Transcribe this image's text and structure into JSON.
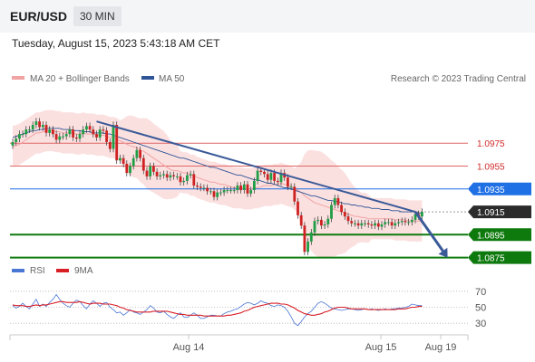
{
  "header": {
    "symbol": "EUR/USD",
    "interval": "30 MIN",
    "datetime": "Tuesday, August 15, 2023 5:43:18 AM CET"
  },
  "legend": {
    "ma20": "MA 20 + Bollinger Bands",
    "ma50": "MA 50",
    "copyright": "Research © 2023 Trading Central",
    "rsi": "RSI",
    "ma9": "9MA"
  },
  "colors": {
    "ma20": "#f2a4a4",
    "ma50": "#2f5597",
    "bollinger": "#fbe0e0",
    "resistance": "#e06666",
    "support": "#0e7a0e",
    "pivot": "#1f6fe5",
    "current": "#2b2b2b",
    "trendline": "#3a5a98",
    "candle_up": "#1f9e45",
    "candle_down": "#cf2222",
    "rsi": "#4a76d4",
    "rsi_ma": "#d81f26"
  },
  "chart_data": [
    {
      "type": "candlestick",
      "y_range": [
        1.0866,
        1.101
      ],
      "x_labels": [
        "Aug 14",
        "Aug 15",
        "Aug 19"
      ],
      "levels": [
        {
          "value": 1.0975,
          "label": "1.0975",
          "kind": "resistance"
        },
        {
          "value": 1.0955,
          "label": "1.0955",
          "kind": "resistance"
        },
        {
          "value": 1.0935,
          "label": "1.0935",
          "kind": "pivot"
        },
        {
          "value": 1.0915,
          "label": "1.0915",
          "kind": "current"
        },
        {
          "value": 1.0895,
          "label": "1.0895",
          "kind": "support"
        },
        {
          "value": 1.0875,
          "label": "1.0875",
          "kind": "support"
        }
      ],
      "closes": [
        1.0976,
        1.0979,
        1.0983,
        1.0983,
        1.0987,
        1.0987,
        1.0991,
        1.0994,
        1.0989,
        1.0991,
        1.0984,
        1.0987,
        1.0983,
        1.0978,
        1.0981,
        1.0981,
        1.0983,
        1.0987,
        1.098,
        1.0979,
        1.0983,
        1.0987,
        1.099,
        1.0987,
        1.0983,
        1.098,
        1.0987,
        1.0986,
        1.0976,
        1.097,
        1.0991,
        1.096,
        1.0962,
        1.0957,
        1.0949,
        1.0955,
        1.0962,
        1.0969,
        1.0962,
        1.0951,
        1.0946,
        1.0955,
        1.095,
        1.0946,
        1.0947,
        1.0948,
        1.0945,
        1.0947,
        1.0946,
        1.0946,
        1.0941,
        1.0942,
        1.0947,
        1.0948,
        1.0938,
        1.0937,
        1.0936,
        1.0936,
        1.0933,
        1.0933,
        1.0928,
        1.0932,
        1.0932,
        1.0934,
        1.0934,
        1.0934,
        1.0934,
        1.0938,
        1.0934,
        1.0939,
        1.0931,
        1.0934,
        1.0942,
        1.0951,
        1.095,
        1.0948,
        1.0943,
        1.0949,
        1.0942,
        1.0941,
        1.0949,
        1.0945,
        1.0937,
        1.0937,
        1.0924,
        1.0912,
        1.0903,
        1.088,
        1.0889,
        1.0897,
        1.0907,
        1.0908,
        1.0903,
        1.0904,
        1.0909,
        1.0921,
        1.0927,
        1.0921,
        1.0915,
        1.0911,
        1.0907,
        1.0905,
        1.0905,
        1.0903,
        1.0905,
        1.0905,
        1.0904,
        1.0903,
        1.0905,
        1.0902,
        1.0904,
        1.0906,
        1.0906,
        1.0903,
        1.0905,
        1.0906,
        1.0907,
        1.0906,
        1.0906,
        1.0908,
        1.0913,
        1.0911,
        1.0915
      ],
      "ma20": [
        1.0972,
        1.0973,
        1.0974,
        1.0976,
        1.0978,
        1.098,
        1.0982,
        1.0984,
        1.0984,
        1.0985,
        1.0986,
        1.0986,
        1.0986,
        1.0985,
        1.0985,
        1.0984,
        1.0984,
        1.0984,
        1.0984,
        1.0983,
        1.0983,
        1.0984,
        1.0983,
        1.0983,
        1.0983,
        1.0982,
        1.0982,
        1.0982,
        1.0981,
        1.098,
        1.098,
        1.0979,
        1.0977,
        1.0976,
        1.0974,
        1.0973,
        1.0972,
        1.0971,
        1.0969,
        1.0968,
        1.0966,
        1.0964,
        1.0962,
        1.096,
        1.0958,
        1.0956,
        1.0954,
        1.0952,
        1.0951,
        1.0951,
        1.095,
        1.0949,
        1.0949,
        1.0947,
        1.0947,
        1.0945,
        1.0944,
        1.0943,
        1.0942,
        1.0941,
        1.0941,
        1.094,
        1.0939,
        1.0939,
        1.0938,
        1.0937,
        1.0936,
        1.0936,
        1.0936,
        1.0935,
        1.0935,
        1.0935,
        1.0936,
        1.0936,
        1.0937,
        1.0938,
        1.0938,
        1.0938,
        1.0939,
        1.0939,
        1.094,
        1.0939,
        1.0938,
        1.0937,
        1.0935,
        1.0934,
        1.0932,
        1.0929,
        1.0927,
        1.0925,
        1.0923,
        1.0922,
        1.0921,
        1.092,
        1.0919,
        1.0918,
        1.0917,
        1.0916,
        1.0915,
        1.0914,
        1.0913,
        1.0912,
        1.0911,
        1.0911,
        1.091,
        1.091,
        1.0909,
        1.0909,
        1.0909,
        1.0909,
        1.0909,
        1.0909,
        1.0909,
        1.0909,
        1.0908,
        1.0908,
        1.0908,
        1.0908,
        1.0907,
        1.0907,
        1.0907,
        1.0907,
        1.0907
      ],
      "ma50": [
        1.098,
        1.0981,
        1.0982,
        1.0983,
        1.0984,
        1.0985,
        1.0986,
        1.0986,
        1.0987,
        1.0987,
        1.0988,
        1.0988,
        1.0988,
        1.0988,
        1.0988,
        1.0987,
        1.0987,
        1.0987,
        1.0986,
        1.0986,
        1.0986,
        1.0985,
        1.0985,
        1.0985,
        1.0984,
        1.0984,
        1.0984,
        1.0984,
        1.0983,
        1.0983,
        1.0982,
        1.0981,
        1.098,
        1.0979,
        1.0978,
        1.0977,
        1.0976,
        1.0975,
        1.0974,
        1.0973,
        1.0972,
        1.0971,
        1.097,
        1.0969,
        1.0968,
        1.0967,
        1.0966,
        1.0965,
        1.0964,
        1.0963,
        1.0962,
        1.0962,
        1.0961,
        1.096,
        1.0959,
        1.0958,
        1.0957,
        1.0956,
        1.0955,
        1.0954,
        1.0954,
        1.0953,
        1.0952,
        1.0951,
        1.095,
        1.0949,
        1.0948,
        1.0947,
        1.0947,
        1.0946,
        1.0945,
        1.0944,
        1.0943,
        1.0943,
        1.0942,
        1.0941,
        1.094,
        1.094,
        1.0939,
        1.0938,
        1.0937,
        1.0936,
        1.0936,
        1.0935,
        1.0934,
        1.0933,
        1.0932,
        1.0931,
        1.093,
        1.0929,
        1.0929,
        1.0928,
        1.0927,
        1.0926,
        1.0925,
        1.0925,
        1.0924,
        1.0924,
        1.0923,
        1.0922,
        1.0922,
        1.0921,
        1.0921,
        1.092,
        1.092,
        1.0919,
        1.0919,
        1.0918,
        1.0918,
        1.0918,
        1.0917,
        1.0917,
        1.0917,
        1.0916,
        1.0916,
        1.0916,
        1.0915,
        1.0915,
        1.0915,
        1.0915,
        1.0915,
        1.0914,
        1.0914
      ],
      "trendline": {
        "start": {
          "bar": 25,
          "value": 1.0994
        },
        "end": {
          "bar": 120,
          "value": 1.0915
        }
      },
      "forecast_arrow": {
        "from": {
          "bar": 120,
          "value": 1.0915
        },
        "to": {
          "bar": 128,
          "value": 1.0875
        }
      }
    },
    {
      "type": "line",
      "name": "RSI",
      "y_ticks": [
        30,
        50,
        70
      ],
      "y_range": [
        20,
        80
      ],
      "series": [
        {
          "name": "RSI",
          "values": [
            52,
            49,
            51,
            55,
            51,
            48,
            54,
            60,
            51,
            54,
            51,
            56,
            60,
            66,
            60,
            55,
            52,
            50,
            55,
            59,
            57,
            52,
            48,
            54,
            58,
            55,
            51,
            55,
            56,
            50,
            47,
            43,
            44,
            40,
            43,
            47,
            44,
            43,
            41,
            44,
            47,
            52,
            49,
            44,
            43,
            45,
            41,
            38,
            36,
            40,
            43,
            38,
            37,
            40,
            43,
            40,
            36,
            36,
            38,
            40,
            40,
            39,
            39,
            42,
            44,
            45,
            47,
            48,
            51,
            54,
            56,
            55,
            53,
            55,
            58,
            56,
            55,
            52,
            51,
            53,
            52,
            50,
            45,
            38,
            30,
            27,
            32,
            38,
            42,
            45,
            50,
            55,
            57,
            55,
            52,
            49,
            48,
            47,
            46,
            47,
            48,
            48,
            47,
            46,
            47,
            48,
            47,
            48,
            47,
            46,
            47,
            48,
            47,
            48,
            48,
            49,
            49,
            50,
            51,
            54,
            53,
            52,
            52
          ]
        },
        {
          "name": "9MA",
          "values": [
            53,
            52,
            52,
            52,
            51,
            51,
            52,
            53,
            52,
            53,
            53,
            54,
            55,
            56,
            57,
            57,
            56,
            56,
            56,
            56,
            57,
            56,
            55,
            54,
            55,
            55,
            55,
            54,
            54,
            54,
            53,
            52,
            50,
            49,
            47,
            46,
            45,
            44,
            44,
            44,
            44,
            44,
            45,
            45,
            45,
            45,
            45,
            44,
            43,
            42,
            41,
            41,
            40,
            40,
            40,
            40,
            40,
            39,
            39,
            39,
            39,
            39,
            39,
            39,
            40,
            40,
            41,
            42,
            43,
            45,
            46,
            48,
            50,
            51,
            52,
            53,
            54,
            55,
            55,
            55,
            54,
            54,
            53,
            51,
            49,
            46,
            44,
            42,
            41,
            40,
            40,
            41,
            42,
            44,
            45,
            47,
            49,
            50,
            50,
            50,
            49,
            48,
            48,
            48,
            48,
            48,
            47,
            47,
            47,
            47,
            47,
            47,
            47,
            47,
            47,
            48,
            48,
            48,
            49,
            50,
            50,
            51,
            51
          ]
        }
      ]
    }
  ]
}
